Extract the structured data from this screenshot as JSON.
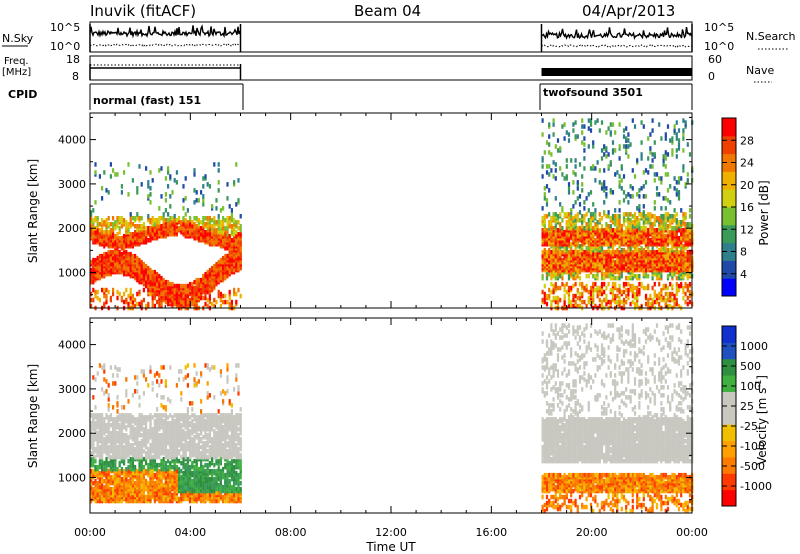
{
  "header": {
    "station": "Inuvik (fitACF)",
    "beam": "Beam 04",
    "date": "04/Apr/2013"
  },
  "panels": {
    "nsky": {
      "label": "N.Sky",
      "ticks": [
        "10^5",
        "10^0"
      ]
    },
    "nsearch": {
      "label": "N.Search",
      "ticks": [
        "10^5",
        "10^0"
      ]
    },
    "freq": {
      "label_line1": "Freq.",
      "label_line2": "[MHz]",
      "ticks": [
        "18",
        "8"
      ]
    },
    "nave": {
      "label": "Nave",
      "ticks": [
        "60",
        "0"
      ]
    },
    "cpid": {
      "label": "CPID",
      "modes": [
        "normal (fast) 151",
        "twofsound 3501"
      ]
    }
  },
  "chart_data": [
    {
      "type": "heatmap",
      "name": "power",
      "ylabel": "Slant Range [km]",
      "xlabel": "Time UT",
      "x_ticks": [
        "00:00",
        "04:00",
        "08:00",
        "12:00",
        "16:00",
        "20:00",
        "00:00"
      ],
      "y_ticks": [
        "1000",
        "2000",
        "3000",
        "4000"
      ],
      "ylim": [
        200,
        4600
      ],
      "colorbar": {
        "label": "Power [dB]",
        "ticks": [
          "28",
          "24",
          "20",
          "16",
          "12",
          "8",
          "4"
        ],
        "colors": [
          "#0000ff",
          "#1f4aa8",
          "#2f7f8a",
          "#3a9a5a",
          "#78c030",
          "#d0d010",
          "#f0b000",
          "#f07800",
          "#f04000",
          "#ff0000"
        ]
      },
      "coverage_hours": [
        [
          0,
          6
        ],
        [
          18,
          24
        ]
      ]
    },
    {
      "type": "heatmap",
      "name": "velocity",
      "ylabel": "Slant Range [km]",
      "xlabel": "Time UT",
      "x_ticks": [
        "00:00",
        "04:00",
        "08:00",
        "12:00",
        "16:00",
        "20:00",
        "00:00"
      ],
      "y_ticks": [
        "1000",
        "2000",
        "3000",
        "4000"
      ],
      "ylim": [
        200,
        4600
      ],
      "colorbar": {
        "label": "Velocity [m s",
        "label_sup": "-1",
        "label_end": "]",
        "ticks": [
          "1000",
          "500",
          "100",
          "25",
          "-25",
          "-100",
          "-500",
          "-1000"
        ],
        "colors": [
          "#ff0000",
          "#ff3a00",
          "#ff7a00",
          "#ffa000",
          "#f0c000",
          "#c8c8c0",
          "#c8c8c0",
          "#40b040",
          "#2f8f40",
          "#2050c0",
          "#1030d0"
        ]
      },
      "coverage_hours": [
        [
          0,
          6
        ],
        [
          18,
          24
        ]
      ]
    }
  ],
  "colors": {
    "ground_grey": "#c8c8c0"
  }
}
